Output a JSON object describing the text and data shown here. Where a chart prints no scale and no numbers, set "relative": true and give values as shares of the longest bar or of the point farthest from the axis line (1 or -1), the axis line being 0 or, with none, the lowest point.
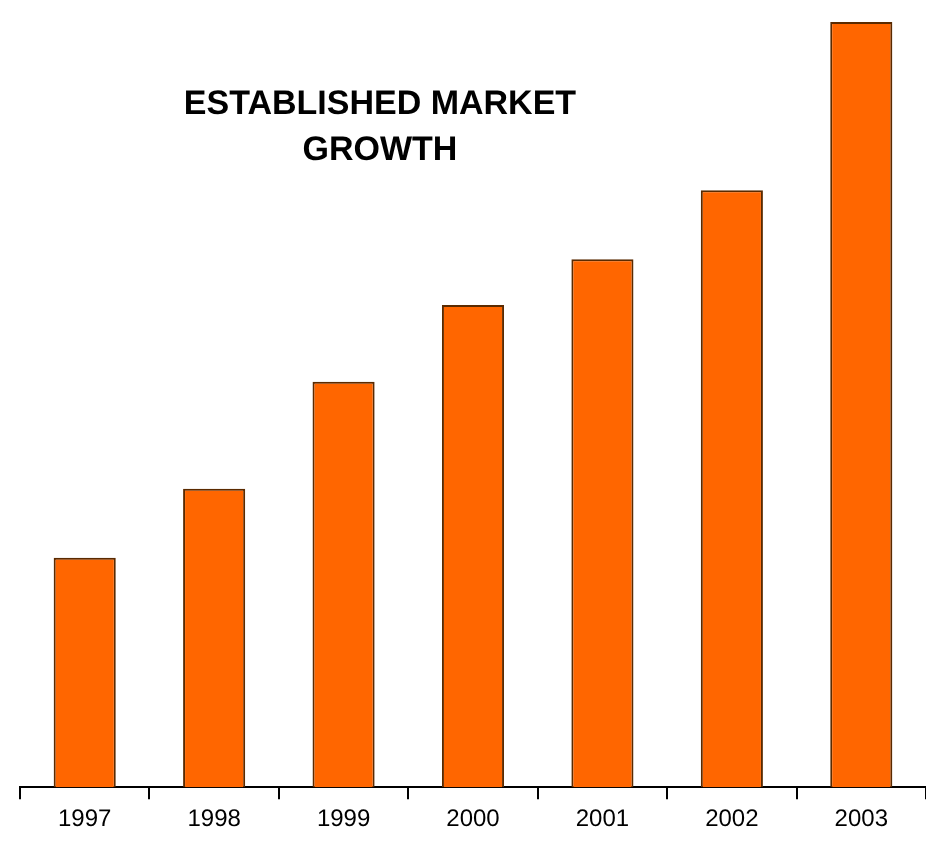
{
  "chart_data": {
    "type": "bar",
    "title": "ESTABLISHED MARKET\nGROWTH",
    "relative": true,
    "categories": [
      "1997",
      "1998",
      "1999",
      "2000",
      "2001",
      "2002",
      "2003"
    ],
    "values": [
      0.3,
      0.39,
      0.53,
      0.63,
      0.69,
      0.78,
      1
    ],
    "color": "#ff6600",
    "legend": false,
    "grid": false
  }
}
